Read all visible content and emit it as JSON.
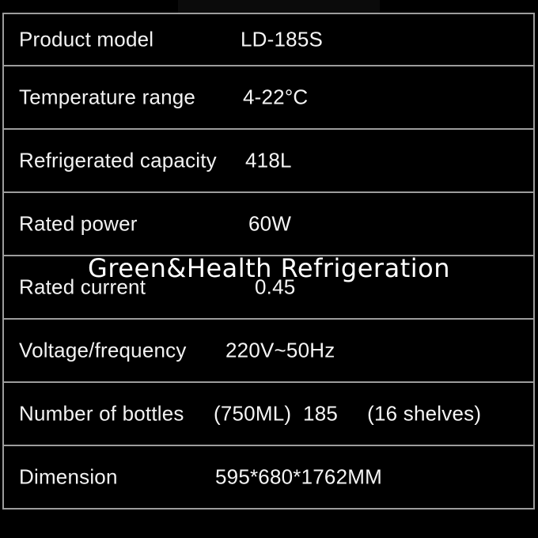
{
  "watermark": "Green&Health Refrigeration",
  "table": {
    "rows": [
      {
        "label": "Product model",
        "value": "LD-185S"
      },
      {
        "label": "Temperature range",
        "value": "4-22°C"
      },
      {
        "label": "Refrigerated capacity",
        "value": "418L"
      },
      {
        "label": "Rated power",
        "value": "60W"
      },
      {
        "label": "Rated current",
        "value": "0.45"
      },
      {
        "label": "Voltage/frequency",
        "value": "220V~50Hz"
      },
      {
        "label": "Number of bottles",
        "value": "(750ML)  185     (16 shelves)"
      },
      {
        "label": "Dimension",
        "value": "595*680*1762MM"
      }
    ]
  },
  "colors": {
    "background": "#000000",
    "border": "#9c9c9c",
    "text": "#f2f2f2",
    "watermark": "#ffffff"
  }
}
